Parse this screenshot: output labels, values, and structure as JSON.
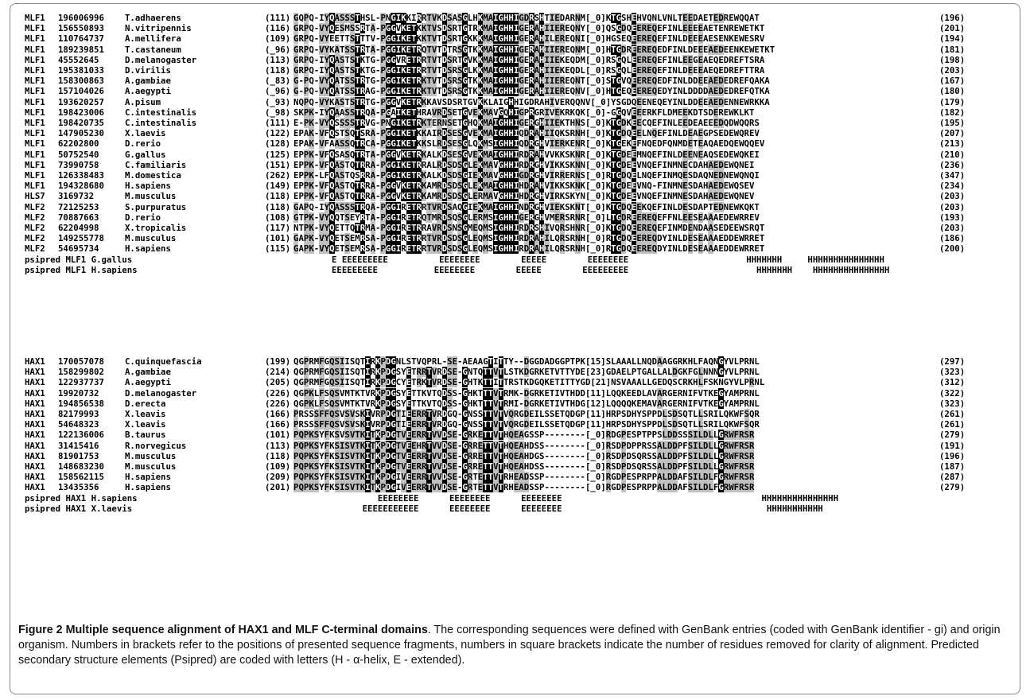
{
  "caption": {
    "figure_label": "Figure 2",
    "title": "Multiple sequence alignment of HAX1 and MLF C-terminal domains",
    "text": ". The corresponding sequences were defined with GenBank entries (coded with GenBank identifier - gi) and origin organism. Numbers in brackets refer to the positions of presented sequence fragments, numbers in square brackets indicate the number of residues removed for clarity of alignment. Predicted secondary structure elements (Psipred) are coded with letters (H - α-helix, E - extended)."
  },
  "blocks": [
    {
      "name": "MLF",
      "rows": [
        {
          "id": "MLF1",
          "gi": "196006996",
          "org": "T.adhaerens",
          "start": "(111)",
          "seq": "GQPQ-IYQASSSTHSL-PNGIKKIRRTVKDSASGLHKMAIGHHIGDRSHTIEDARNM[_0]KTGSHEHVQNLVNLTEEDAETEDREWQQAT",
          "end": "(196)"
        },
        {
          "id": "MLF1",
          "gi": "156550893",
          "org": "N.vitripennis",
          "start": "(116)",
          "seq": "GRPQ-VYQESMSSRTA-PGGVKETKKTVSDSRTGTRKMAIGHHIGERAHIIEREQNY[_0]QSGDQEEREQEFINLEEEEAETENREWETKT",
          "end": "(201)"
        },
        {
          "id": "MLF1",
          "gi": "110764737",
          "org": "A.mellifera",
          "start": "(109)",
          "seq": "GRPQ-VYEETTSTTTV-PGGIKETKKTVTDSRTGKKKMAIGHHIGERAHILEREQNI[_0]HGSEQEEREQEFINLDEEEAESENKEWESRV",
          "end": "(194)"
        },
        {
          "id": "MLF1",
          "gi": "189239851",
          "org": "T.castaneum",
          "start": "(_96)",
          "seq": "GRPQ-VYKATSSTRTA-PGGIKETRQTVTDTRSGTKKMAIGHHIGERAHIIEREQNM[_0]HTGDREEREQEDFINLDEEEAEDEENKEWETKT",
          "end": "(181)"
        },
        {
          "id": "MLF1",
          "gi": "45552645",
          "org": "D.melanogaster",
          "start": "(113)",
          "seq": "GRPQ-IYQASTSTKTG-PGGVRETRRTVTDSRTGVKKMAIGHHIGERAHIIEKEQDM[_0]RSGQLEEREQEFINLEEGEAEQEDREFTSRA",
          "end": "(198)"
        },
        {
          "id": "MLF1",
          "gi": "195381033",
          "org": "D.virilis",
          "start": "(118)",
          "seq": "GRPQ-IYQASTSTKTG-PGGIKETRRTVTDSRSGLKKMAIGHHIGERAHIIEKEQDL[_0]RSGQLEEREQEFINLDEEEAEQEDREFTTRA",
          "end": "(203)"
        },
        {
          "id": "MLF1",
          "gi": "158300863",
          "org": "A.gambiae",
          "start": "(_83)",
          "seq": "G-PQ-VYQATSSTRTG-PGGIKETRKTVTDSRSGTKKMAIGHHIGERAHIIEREQNT[_0]STGVQEEREQEDFINLDDEEAEDEDREFQAKA",
          "end": "(167)"
        },
        {
          "id": "MLF1",
          "gi": "157104026",
          "org": "A.aegypti",
          "start": "(_96)",
          "seq": "G-PQ-VYQATSSTRAG-PGGIKETRKTVTDSRSGTKKMAIGHHIGERAHIIEREQNV[_0]HTGEQEEREQEDYINLDDDDAEDEDREFQTKA",
          "end": "(180)"
        },
        {
          "id": "MLF1",
          "gi": "193620257",
          "org": "A.pisum",
          "start": "(_93)",
          "seq": "NQPQ-VYKASTSTRTG-PGGVKETRKKAVSDSRTGVKKLAIGHHIGDRAHIVERQQNV[_0]YSGDQEENEQEYINLDDEEAEDENNEWRKKA",
          "end": "(179)"
        },
        {
          "id": "MLF1",
          "gi": "198423006",
          "org": "C.intestinalis",
          "start": "(_98)",
          "seq": "SKPK-IYQAASSTRQA-PGAIKETHRAVRDSETGVEKMAVGQHIGPRGRIVEKRKQK[_0]-GGQVEEERKFLDMEEKDTSDEREWKLKT",
          "end": "(182)"
        },
        {
          "id": "MLF1",
          "gi": "198420735",
          "org": "C.intestinalis",
          "start": "(111)",
          "seq": "E-PK-VYQSSSSTRVG-PNGIKETRKTERNSETGHQKMAIGHHIGERGHIIEKTHNS[_0]KTGDKEECQEFINLEEDEAEEEDQDWQQRS",
          "end": "(195)"
        },
        {
          "id": "MLF1",
          "gi": "147905230",
          "org": "X.laevis",
          "start": "(122)",
          "seq": "EPAK-VFQSTSQTSRA-PGGIKETKKAIRDSESGVEKMAIGHHIQDRAHIIQKSRNH[_0]KTGDQEELNQEFINLDEAEGPSEDEWQREV",
          "end": "(207)"
        },
        {
          "id": "MLF1",
          "gi": "62202800",
          "org": "D.rerio",
          "start": "(128)",
          "seq": "EPAK-VFAASSQTRCA-PGGIKETKKSLRDSESGLQKMSIGHHIQDRGHVIERKENR[_0]KTGEKEFNQEDFQNMDETEAQAEDQEWQQEV",
          "end": "(213)"
        },
        {
          "id": "MLF1",
          "gi": "50752540",
          "org": "G.gallus",
          "start": "(125)",
          "seq": "EPPK-VFQSASQTRTA-PGGVKETRKALKDSESGVEKMAIGHHIRDRAHVVKKSKNR[_0]KTGDEEMNQEFINLDEENEAQSEDEWQKEI",
          "end": "(210)"
        },
        {
          "id": "MLF1",
          "gi": "73990758",
          "org": "C.familiaris",
          "start": "(151)",
          "seq": "EPPK-VFQASTQTRRA-PGGIKETRRALRDSDSGLEKMAVGHHIRDRGHVIKKSKNN[_0]KTGDEEVNQEFINMNECDAHAEDEWQNEI",
          "end": "(236)"
        },
        {
          "id": "MLF1",
          "gi": "126338483",
          "org": "M.domestica",
          "start": "(262)",
          "seq": "EPPK-LFQASTQSRRA-PGGIKETRKALKDSDSGIEKMAVGHHIGDRGHVIRRERNS[_0]RTGDQELNQEFINMQESDAQNEDNEWQNQI",
          "end": "(347)"
        },
        {
          "id": "MLF1",
          "gi": "194328680",
          "org": "H.sapiens",
          "start": "(149)",
          "seq": "EPPK-VFQASTQTRRA-PGGVKETRKAMRDSDSGLEKMAIGHHIHDRAHVIKKSKNK[_0]KTGDEEVNQ-FINMNESDAHAEDEWQSEV",
          "end": "(234)"
        },
        {
          "id": "HLS7",
          "gi": "3169732",
          "org": "M.musculus",
          "start": "(118)",
          "seq": "EPPK-VFQASTQTRRA-PGGVKETRKAMRDSDSGLERMAVGHHIHDRGHVIRKSKYN[_0]KTGDEEVNQEFINMNESDAHAEDEWQNEV",
          "end": "(203)"
        },
        {
          "id": "MLF2",
          "gi": "72125253",
          "org": "S.purpuratus",
          "start": "(118)",
          "seq": "GAPQ-IYQASSSTRQA-PGGIRETRRTVRDSAQGIEKMAIGHHINDRGHVIEKSKNT[_0]KTGDQEEKQEFINLDESDAPTEDNEWKQKT",
          "end": "(203)"
        },
        {
          "id": "MLF2",
          "gi": "70887663",
          "org": "D.rerio",
          "start": "(108)",
          "seq": "GTPK-VYQQTSEYRTA-PGGIRETRQTMRDSQSGLERMSIGHHIGERGHVMERSRNR[_0]LTGDREEREQEFFNLEESEAAAEDEWRREV",
          "end": "(193)"
        },
        {
          "id": "MLF2",
          "gi": "62204998",
          "org": "X.tropicalis",
          "start": "(117)",
          "seq": "NTPK-VYQETTQTRMA-PGGIRETRRAVRDSNSGMEQMSIGHHIRDRSHIVQRSHNR[_0]KTGDQEEREQEFINMDENDAASEDEEWSRQT",
          "end": "(203)"
        },
        {
          "id": "MLF2",
          "gi": "149255778",
          "org": "M.musculus",
          "start": "(101)",
          "seq": "GAPK-VYQETSEMRSA-PGGIRETRRTVRDSDSGLEQMSIGHHIRDRAHILQRSRNH[_0]RTGDQEEREQDYINLDESEAAAEDDEWRRET",
          "end": "(186)"
        },
        {
          "id": "MLF2",
          "gi": "54695734",
          "org": "H.sapiens",
          "start": "(115)",
          "seq": "GAPK-VYQETSEMRSA-PGGIRETRRTVRDSDSGLEQMSIGHHIRDRAHILQRSRNH[_0]RTGDQEEREQDYINLDESEAAAEDDEWRRET",
          "end": "(200)"
        }
      ],
      "psipred": [
        {
          "label": "psipred MLF1 G.gallus",
          "ss": "E EEEEEEEEE          EEEEEEEE        EEEEE        EEEEEEEE                       HHHHHHH     HHHHHHHHHHHHHHH"
        },
        {
          "label": "psipred MLF1 H.sapiens",
          "ss": "EEEEEEEEE           EEEEEEEE        EEEEE        EEEEEEEEE                         HHHHHHH    HHHHHHHHHHHHHHH"
        }
      ]
    },
    {
      "name": "HAX1",
      "rows": [
        {
          "id": "HAX1",
          "gi": "170057078",
          "org": "C.quinquefascia",
          "start": "(199)",
          "seq": "QGPRMFGQSIISQTIRKPDGNLSTVQPRL-SE-AEAAGTITTY--DGGDADGGPTPK[15]SLAAALLNQDAAGGRKHLFAQNGYVLPRNL",
          "end": "(297)"
        },
        {
          "id": "HAX1",
          "gi": "158299802",
          "org": "A.gambiae",
          "start": "(214)",
          "seq": "QGPRMFGQSIISQTIRKPDGSYETRRTVRDSE-GNTQTTVTLSTKDGRKETVTTYDE[23]GDAELPTGALLALDGKFGLNNNGYVLPRNL",
          "end": "(323)"
        },
        {
          "id": "HAX1",
          "gi": "122937737",
          "org": "A.aegypti",
          "start": "(205)",
          "seq": "QGPRMFGQSIISQTIRKPDGCYETRKTVRDSE-GHTKTTITTRSTKDGQKETITTYGD[21]NSVAAALLGEDQSCRKHLFSKNGYVLPRNL",
          "end": "(312)"
        },
        {
          "id": "HAX1",
          "gi": "19920732",
          "org": "D.melanogaster",
          "start": "(226)",
          "seq": "QGPKLFSQSVMTKTVRKPDGSYETTKVTQDSS-GHKTTTVTRMK-DGRKETIVTHDD[11]LQQKEEDLAVARGERNIFVTKEGYAMPRNL",
          "end": "(322)"
        },
        {
          "id": "HAX1",
          "gi": "194856538",
          "org": "D.erecta",
          "start": "(226)",
          "seq": "QGPKLFSQSVMTKTVRKPDGSYETTKVTQDSS-GHKTTTVTRMI-DGRKETIVTHDG[12]LQQQQKEMAVARGERNIFVTKEGYAMPRNL",
          "end": "(323)"
        },
        {
          "id": "HAX1",
          "gi": "82179993",
          "org": "X.leavis",
          "start": "(166)",
          "seq": "PRSSSFFQSVSVSKIVRPDGTIEERRTVRDGQ-GNSSTTVTVQRGDEILSSETQDGP[11]HRPSDHYSPPDLSDSQTLLSRILQKWFSQR",
          "end": "(261)"
        },
        {
          "id": "HAX1",
          "gi": "54648323",
          "org": "X.leavis",
          "start": "(166)",
          "seq": "PRSSSFFQSVSVSKIVRPDGTIEERRTVRDGQ-GNSSTTVTVQRGDEILSSETQDGP[11]HRPSDHYSPPDLSDSQTLLSRILQKWFSQR",
          "end": "(261)"
        },
        {
          "id": "HAX1",
          "gi": "122136006",
          "org": "B.taurus",
          "start": "(101)",
          "seq": "PQPKSYFKSVSVTKITKPDGTVEERRTVVDSE-GRKETTVTHQEAGSSP--------[_0]RDGPESPTPPSLDDSSSILDLLGRWFRSR",
          "end": "(279)"
        },
        {
          "id": "HAX1",
          "gi": "31415416",
          "org": "R.norvegicus",
          "start": "(113)",
          "seq": "PQPKSYFKSISVTKITKPDGTVEEHRTVVDSE-GRRETTVTHQEAHDSS--------[_0]RSDPDPPRSSALDDPFSILDLLGRWFRSR",
          "end": "(191)"
        },
        {
          "id": "HAX1",
          "gi": "81901753",
          "org": "M.musculus",
          "start": "(118)",
          "seq": "PQPKSYFKSISVTKITKPDGTVEERRTVVDSE-GRRETTVTHQEAHDGS--------[_0]RSDPDSQRSSALDDPFSILDLLGRWFRSR",
          "end": "(196)"
        },
        {
          "id": "HAX1",
          "gi": "148683230",
          "org": "M.musculus",
          "start": "(109)",
          "seq": "PQPKSYFKSISVTKITKPDGTVEERRTVVDSE-GRRETTVTHQEAHDSS--------[_0]RSDPDSQRSSALDDPFSILDLLGRWFRSR",
          "end": "(187)"
        },
        {
          "id": "HAX1",
          "gi": "158562115",
          "org": "H.sapiens",
          "start": "(209)",
          "seq": "PQPKSYFKSISVTKITKPDGIVEERRTVVDSE-GRTETTVTRHEADSSP--------[_0]RGDPESPRPPALDDAFSILDLFGRWFRSR",
          "end": "(287)"
        },
        {
          "id": "HAX1",
          "gi": "13435356",
          "org": "H.sapiens",
          "start": "(201)",
          "seq": "PQPKSYFKSISVTKITKPDGIVEERRTVVDSE-GRTETTVTRHEADSSP--------[_0]RGDPESPRPPALDDAFSILDLFGRWFRSR",
          "end": "(279)"
        }
      ],
      "psipred": [
        {
          "label": "psipred HAX1 H.sapiens",
          "ss": "         EEEEEEEE      EEEEEEEE      EEEEEEEE                                       HHHHHHHHHHHHHHH"
        },
        {
          "label": "psipred HAX1 X.laevis",
          "ss": "      EEEEEEEEEEE      EEEEEEEE      EEEEEEEE                                        HHHHHHHHHHH"
        }
      ]
    }
  ],
  "shading": {
    "black": "#000000",
    "grey": "#c0c0c0"
  }
}
